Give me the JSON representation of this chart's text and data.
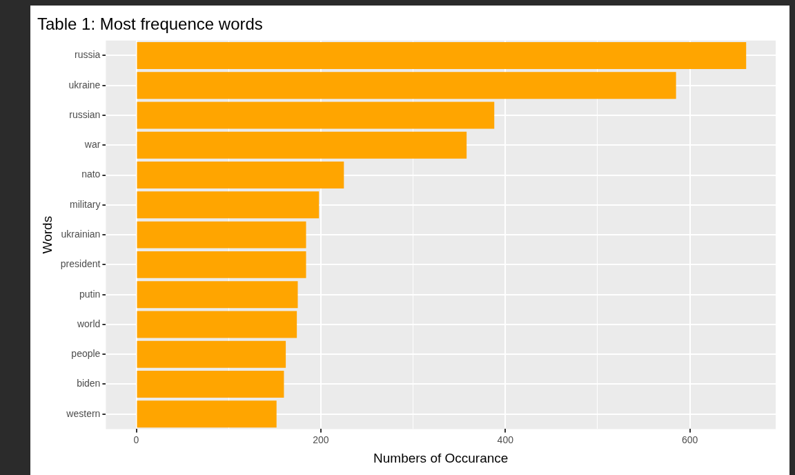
{
  "chart_data": {
    "type": "bar",
    "orientation": "horizontal",
    "title": "Table 1: Most frequence words",
    "xlabel": "Numbers of Occurance",
    "ylabel": "Words",
    "categories": [
      "russia",
      "ukraine",
      "russian",
      "war",
      "nato",
      "military",
      "ukrainian",
      "president",
      "putin",
      "world",
      "people",
      "biden",
      "western"
    ],
    "values": [
      661,
      585,
      388,
      358,
      225,
      198,
      184,
      184,
      175,
      174,
      162,
      160,
      152
    ],
    "color": "#ffa500",
    "xlim": [
      -33,
      693
    ],
    "xticks": [
      0,
      {
        "value": 100,
        "label": null
      },
      200,
      {
        "value": 300,
        "label": null
      },
      400,
      {
        "value": 500,
        "label": null
      },
      600
    ],
    "grid": true
  }
}
